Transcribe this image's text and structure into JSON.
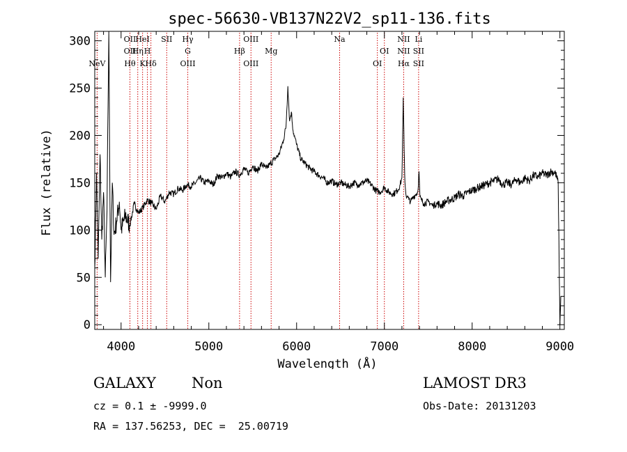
{
  "chart_data": {
    "type": "line",
    "title": "spec-56630-VB137N22V2_sp11-136.fits",
    "xlabel": "Wavelength (Å)",
    "ylabel": "Flux (relative)",
    "xlim": [
      3700,
      9050
    ],
    "ylim": [
      -5,
      310
    ],
    "xticks": [
      4000,
      5000,
      6000,
      7000,
      8000,
      9000
    ],
    "yticks": [
      0,
      50,
      100,
      150,
      200,
      250,
      300
    ],
    "grid": false,
    "series": [
      {
        "x": [
          3700,
          3720,
          3740,
          3760,
          3780,
          3800,
          3820,
          3840,
          3860,
          3880,
          3900,
          3920,
          3950,
          3980,
          4000,
          4050,
          4100,
          4150,
          4200,
          4250,
          4300,
          4350,
          4400,
          4450,
          4500,
          4550,
          4600,
          4650,
          4700,
          4750,
          4800,
          4850,
          4900,
          4950,
          5000,
          5050,
          5100,
          5150,
          5200,
          5250,
          5300,
          5350,
          5400,
          5450,
          5500,
          5550,
          5600,
          5650,
          5700,
          5750,
          5800,
          5850,
          5880,
          5900,
          5920,
          5940,
          5960,
          5980,
          6000,
          6050,
          6100,
          6150,
          6200,
          6250,
          6300,
          6350,
          6400,
          6450,
          6500,
          6550,
          6600,
          6650,
          6700,
          6750,
          6800,
          6850,
          6900,
          6950,
          7000,
          7050,
          7100,
          7150,
          7180,
          7200,
          7215,
          7225,
          7235,
          7245,
          7260,
          7280,
          7300,
          7330,
          7360,
          7380,
          7395,
          7405,
          7420,
          7450,
          7500,
          7550,
          7600,
          7650,
          7700,
          7750,
          7800,
          7850,
          7900,
          7950,
          8000,
          8050,
          8100,
          8150,
          8200,
          8250,
          8300,
          8350,
          8400,
          8450,
          8500,
          8550,
          8600,
          8650,
          8700,
          8750,
          8800,
          8850,
          8900,
          8950,
          8980,
          9000,
          9010
        ],
        "y": [
          60,
          160,
          70,
          180,
          90,
          140,
          50,
          120,
          310,
          45,
          150,
          95,
          110,
          130,
          100,
          115,
          105,
          128,
          118,
          124,
          132,
          128,
          122,
          136,
          130,
          140,
          138,
          144,
          142,
          148,
          146,
          150,
          155,
          150,
          152,
          148,
          158,
          155,
          160,
          156,
          162,
          158,
          165,
          160,
          168,
          162,
          170,
          165,
          170,
          175,
          180,
          195,
          210,
          252,
          215,
          225,
          205,
          198,
          190,
          175,
          170,
          165,
          162,
          158,
          155,
          150,
          152,
          148,
          150,
          148,
          146,
          150,
          148,
          150,
          152,
          148,
          142,
          140,
          145,
          140,
          138,
          142,
          148,
          155,
          240,
          185,
          150,
          138,
          135,
          132,
          130,
          135,
          138,
          140,
          162,
          135,
          132,
          128,
          130,
          126,
          128,
          126,
          130,
          132,
          134,
          138,
          136,
          140,
          142,
          144,
          146,
          148,
          150,
          152,
          154,
          148,
          150,
          148,
          154,
          150,
          155,
          152,
          158,
          156,
          160,
          158,
          162,
          160,
          150,
          0,
          30
        ]
      }
    ],
    "lines": [
      {
        "x": 3727,
        "labels": [
          "",
          "",
          "NeV"
        ]
      },
      {
        "x": 4101,
        "labels": [
          "OII",
          "OII",
          "Hθ"
        ]
      },
      {
        "x": 4190,
        "labels": [
          "",
          "Hη",
          ""
        ]
      },
      {
        "x": 4245,
        "labels": [
          "HeI",
          "",
          "K"
        ]
      },
      {
        "x": 4300,
        "labels": [
          "",
          "H",
          ""
        ]
      },
      {
        "x": 4340,
        "labels": [
          "",
          "",
          "Hδ"
        ]
      },
      {
        "x": 4520,
        "labels": [
          "SII",
          "",
          ""
        ]
      },
      {
        "x": 4760,
        "labels": [
          "Hγ",
          "G",
          "OIII"
        ]
      },
      {
        "x": 5350,
        "labels": [
          "",
          "Hβ",
          ""
        ]
      },
      {
        "x": 5480,
        "labels": [
          "OIII",
          "",
          "OIII"
        ]
      },
      {
        "x": 5710,
        "labels": [
          "",
          "Mg",
          ""
        ]
      },
      {
        "x": 6490,
        "labels": [
          "Na",
          "",
          ""
        ]
      },
      {
        "x": 6920,
        "labels": [
          "",
          "",
          "OI"
        ]
      },
      {
        "x": 7000,
        "labels": [
          "",
          "OI",
          ""
        ]
      },
      {
        "x": 7220,
        "labels": [
          "NII",
          "NII",
          "Hα"
        ]
      },
      {
        "x": 7390,
        "labels": [
          "Li",
          "SII",
          "SII"
        ]
      }
    ]
  },
  "info": {
    "class_label": "GALAXY",
    "subclass_label": "Non",
    "survey": "LAMOST DR3",
    "cz": "cz = 0.1 ± -9999.0",
    "obs_date": "Obs-Date: 20131203",
    "coords": "RA = 137.56253, DEC =  25.00719"
  },
  "colors": {
    "spectrum": "#000000",
    "line_marker": "#cc0000",
    "background": "#ffffff"
  }
}
